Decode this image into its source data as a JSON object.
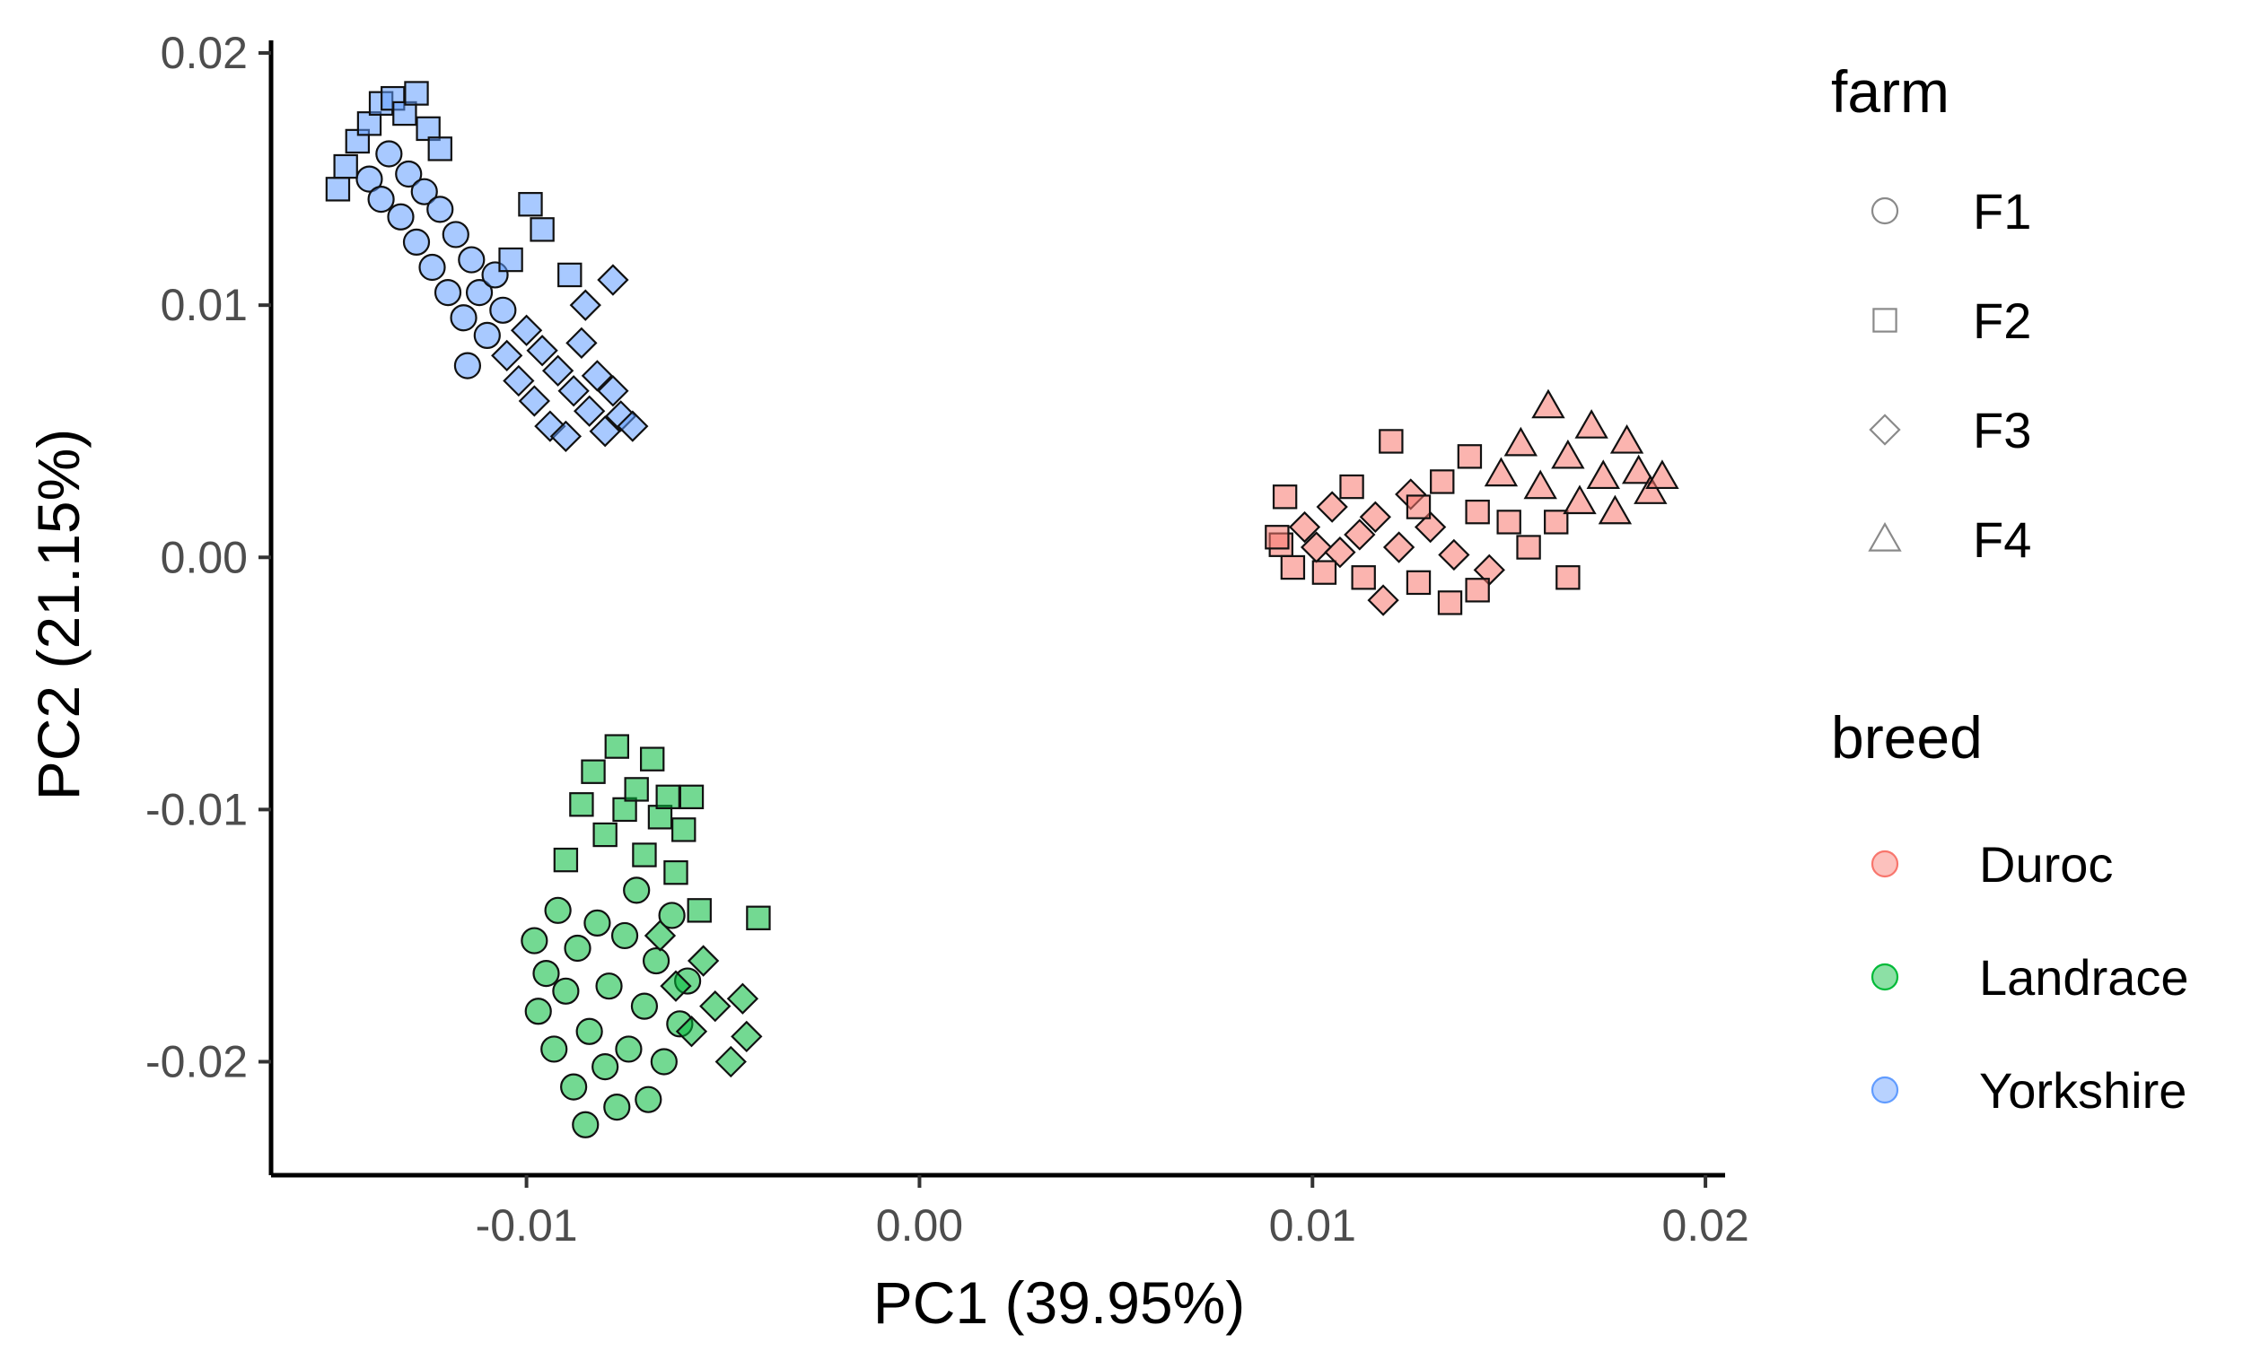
{
  "chart_data": {
    "type": "scatter",
    "title": "",
    "xlabel": "PC1 (39.95%)",
    "ylabel": "PC2 (21.15%)",
    "xlim": [
      -0.0165,
      0.0205
    ],
    "ylim": [
      -0.0245,
      0.0205
    ],
    "x_ticks": [
      -0.01,
      0.0,
      0.01,
      0.02
    ],
    "x_tick_labels": [
      "-0.01",
      "0.00",
      "0.01",
      "0.02"
    ],
    "y_ticks": [
      -0.02,
      -0.01,
      0.0,
      0.01,
      0.02
    ],
    "y_tick_labels": [
      "-0.02",
      "-0.01",
      "0.00",
      "0.01",
      "0.02"
    ],
    "grid": false,
    "legend_position": "right",
    "legends": [
      {
        "title": "farm",
        "entries": [
          {
            "label": "F1",
            "shape": "circle"
          },
          {
            "label": "F2",
            "shape": "square"
          },
          {
            "label": "F3",
            "shape": "diamond"
          },
          {
            "label": "F4",
            "shape": "triangle"
          }
        ]
      },
      {
        "title": "breed",
        "entries": [
          {
            "label": "Duroc",
            "color": "#F8766D"
          },
          {
            "label": "Landrace",
            "color": "#00BA38"
          },
          {
            "label": "Yorkshire",
            "color": "#619CFF"
          }
        ]
      }
    ],
    "series": [
      {
        "name": "Duroc",
        "color": "#F8766D",
        "points": [
          {
            "x": 0.0092,
            "y": 0.0005,
            "shape": "square"
          },
          {
            "x": 0.0091,
            "y": 0.0008,
            "shape": "square"
          },
          {
            "x": 0.0093,
            "y": 0.0024,
            "shape": "square"
          },
          {
            "x": 0.0095,
            "y": -0.0004,
            "shape": "square"
          },
          {
            "x": 0.0098,
            "y": 0.0012,
            "shape": "diamond"
          },
          {
            "x": 0.0101,
            "y": 0.0004,
            "shape": "diamond"
          },
          {
            "x": 0.0103,
            "y": -0.0006,
            "shape": "square"
          },
          {
            "x": 0.0105,
            "y": 0.002,
            "shape": "diamond"
          },
          {
            "x": 0.0107,
            "y": 0.0002,
            "shape": "diamond"
          },
          {
            "x": 0.011,
            "y": 0.0028,
            "shape": "square"
          },
          {
            "x": 0.0112,
            "y": 0.0009,
            "shape": "diamond"
          },
          {
            "x": 0.0113,
            "y": -0.0008,
            "shape": "square"
          },
          {
            "x": 0.0116,
            "y": 0.0016,
            "shape": "diamond"
          },
          {
            "x": 0.0118,
            "y": -0.0017,
            "shape": "diamond"
          },
          {
            "x": 0.012,
            "y": 0.0046,
            "shape": "square"
          },
          {
            "x": 0.0122,
            "y": 0.0004,
            "shape": "diamond"
          },
          {
            "x": 0.0125,
            "y": 0.0025,
            "shape": "diamond"
          },
          {
            "x": 0.0127,
            "y": -0.001,
            "shape": "square"
          },
          {
            "x": 0.013,
            "y": 0.0012,
            "shape": "diamond"
          },
          {
            "x": 0.0133,
            "y": 0.003,
            "shape": "square"
          },
          {
            "x": 0.0136,
            "y": 0.0001,
            "shape": "diamond"
          },
          {
            "x": 0.014,
            "y": 0.004,
            "shape": "square"
          },
          {
            "x": 0.0142,
            "y": 0.0018,
            "shape": "square"
          },
          {
            "x": 0.0145,
            "y": -0.0005,
            "shape": "diamond"
          },
          {
            "x": 0.0148,
            "y": 0.0033,
            "shape": "triangle"
          },
          {
            "x": 0.015,
            "y": 0.0014,
            "shape": "square"
          },
          {
            "x": 0.0153,
            "y": 0.0045,
            "shape": "triangle"
          },
          {
            "x": 0.0155,
            "y": 0.0004,
            "shape": "square"
          },
          {
            "x": 0.0158,
            "y": 0.0028,
            "shape": "triangle"
          },
          {
            "x": 0.016,
            "y": 0.006,
            "shape": "triangle"
          },
          {
            "x": 0.0162,
            "y": 0.0014,
            "shape": "square"
          },
          {
            "x": 0.0165,
            "y": 0.004,
            "shape": "triangle"
          },
          {
            "x": 0.0168,
            "y": 0.0022,
            "shape": "triangle"
          },
          {
            "x": 0.0171,
            "y": 0.0052,
            "shape": "triangle"
          },
          {
            "x": 0.0174,
            "y": 0.0032,
            "shape": "triangle"
          },
          {
            "x": 0.0177,
            "y": 0.0018,
            "shape": "triangle"
          },
          {
            "x": 0.018,
            "y": 0.0046,
            "shape": "triangle"
          },
          {
            "x": 0.0183,
            "y": 0.0034,
            "shape": "triangle"
          },
          {
            "x": 0.0186,
            "y": 0.0026,
            "shape": "triangle"
          },
          {
            "x": 0.0189,
            "y": 0.0032,
            "shape": "triangle"
          },
          {
            "x": 0.0127,
            "y": 0.002,
            "shape": "square"
          },
          {
            "x": 0.0165,
            "y": -0.0008,
            "shape": "square"
          },
          {
            "x": 0.0142,
            "y": -0.0013,
            "shape": "square"
          },
          {
            "x": 0.0135,
            "y": -0.0018,
            "shape": "square"
          }
        ]
      },
      {
        "name": "Landrace",
        "color": "#00BA38",
        "points": [
          {
            "x": -0.0098,
            "y": -0.0152,
            "shape": "circle"
          },
          {
            "x": -0.0097,
            "y": -0.018,
            "shape": "circle"
          },
          {
            "x": -0.0095,
            "y": -0.0165,
            "shape": "circle"
          },
          {
            "x": -0.0093,
            "y": -0.0195,
            "shape": "circle"
          },
          {
            "x": -0.0092,
            "y": -0.014,
            "shape": "circle"
          },
          {
            "x": -0.009,
            "y": -0.0172,
            "shape": "circle"
          },
          {
            "x": -0.0088,
            "y": -0.021,
            "shape": "circle"
          },
          {
            "x": -0.0087,
            "y": -0.0155,
            "shape": "circle"
          },
          {
            "x": -0.0085,
            "y": -0.0225,
            "shape": "circle"
          },
          {
            "x": -0.0084,
            "y": -0.0188,
            "shape": "circle"
          },
          {
            "x": -0.0082,
            "y": -0.0145,
            "shape": "circle"
          },
          {
            "x": -0.008,
            "y": -0.0202,
            "shape": "circle"
          },
          {
            "x": -0.0079,
            "y": -0.017,
            "shape": "circle"
          },
          {
            "x": -0.0077,
            "y": -0.0218,
            "shape": "circle"
          },
          {
            "x": -0.0075,
            "y": -0.015,
            "shape": "circle"
          },
          {
            "x": -0.0074,
            "y": -0.0195,
            "shape": "circle"
          },
          {
            "x": -0.0072,
            "y": -0.0132,
            "shape": "circle"
          },
          {
            "x": -0.007,
            "y": -0.0178,
            "shape": "circle"
          },
          {
            "x": -0.0069,
            "y": -0.0215,
            "shape": "circle"
          },
          {
            "x": -0.0067,
            "y": -0.016,
            "shape": "circle"
          },
          {
            "x": -0.0065,
            "y": -0.02,
            "shape": "circle"
          },
          {
            "x": -0.0063,
            "y": -0.0142,
            "shape": "circle"
          },
          {
            "x": -0.0061,
            "y": -0.0185,
            "shape": "circle"
          },
          {
            "x": -0.0059,
            "y": -0.0168,
            "shape": "circle"
          },
          {
            "x": -0.009,
            "y": -0.012,
            "shape": "square"
          },
          {
            "x": -0.0086,
            "y": -0.0098,
            "shape": "square"
          },
          {
            "x": -0.0083,
            "y": -0.0085,
            "shape": "square"
          },
          {
            "x": -0.008,
            "y": -0.011,
            "shape": "square"
          },
          {
            "x": -0.0077,
            "y": -0.0075,
            "shape": "square"
          },
          {
            "x": -0.0075,
            "y": -0.01,
            "shape": "square"
          },
          {
            "x": -0.0072,
            "y": -0.0092,
            "shape": "square"
          },
          {
            "x": -0.007,
            "y": -0.0118,
            "shape": "square"
          },
          {
            "x": -0.0068,
            "y": -0.008,
            "shape": "square"
          },
          {
            "x": -0.0066,
            "y": -0.0103,
            "shape": "square"
          },
          {
            "x": -0.0064,
            "y": -0.0095,
            "shape": "square"
          },
          {
            "x": -0.0062,
            "y": -0.0125,
            "shape": "square"
          },
          {
            "x": -0.006,
            "y": -0.0108,
            "shape": "square"
          },
          {
            "x": -0.0058,
            "y": -0.0095,
            "shape": "square"
          },
          {
            "x": -0.0056,
            "y": -0.014,
            "shape": "square"
          },
          {
            "x": -0.0041,
            "y": -0.0143,
            "shape": "square"
          },
          {
            "x": -0.0066,
            "y": -0.015,
            "shape": "diamond"
          },
          {
            "x": -0.0062,
            "y": -0.017,
            "shape": "diamond"
          },
          {
            "x": -0.0058,
            "y": -0.0188,
            "shape": "diamond"
          },
          {
            "x": -0.0055,
            "y": -0.016,
            "shape": "diamond"
          },
          {
            "x": -0.0052,
            "y": -0.0178,
            "shape": "diamond"
          },
          {
            "x": -0.0048,
            "y": -0.02,
            "shape": "diamond"
          },
          {
            "x": -0.0045,
            "y": -0.0175,
            "shape": "diamond"
          },
          {
            "x": -0.0044,
            "y": -0.019,
            "shape": "diamond"
          }
        ]
      },
      {
        "name": "Yorkshire",
        "color": "#619CFF",
        "points": [
          {
            "x": -0.0148,
            "y": 0.0146,
            "shape": "square"
          },
          {
            "x": -0.0146,
            "y": 0.0155,
            "shape": "square"
          },
          {
            "x": -0.0143,
            "y": 0.0165,
            "shape": "square"
          },
          {
            "x": -0.014,
            "y": 0.0172,
            "shape": "square"
          },
          {
            "x": -0.0137,
            "y": 0.018,
            "shape": "square"
          },
          {
            "x": -0.0134,
            "y": 0.0182,
            "shape": "square"
          },
          {
            "x": -0.0131,
            "y": 0.0176,
            "shape": "square"
          },
          {
            "x": -0.0128,
            "y": 0.0184,
            "shape": "square"
          },
          {
            "x": -0.0125,
            "y": 0.017,
            "shape": "square"
          },
          {
            "x": -0.0122,
            "y": 0.0162,
            "shape": "square"
          },
          {
            "x": -0.014,
            "y": 0.015,
            "shape": "circle"
          },
          {
            "x": -0.0137,
            "y": 0.0142,
            "shape": "circle"
          },
          {
            "x": -0.0135,
            "y": 0.016,
            "shape": "circle"
          },
          {
            "x": -0.0132,
            "y": 0.0135,
            "shape": "circle"
          },
          {
            "x": -0.013,
            "y": 0.0152,
            "shape": "circle"
          },
          {
            "x": -0.0128,
            "y": 0.0125,
            "shape": "circle"
          },
          {
            "x": -0.0126,
            "y": 0.0145,
            "shape": "circle"
          },
          {
            "x": -0.0124,
            "y": 0.0115,
            "shape": "circle"
          },
          {
            "x": -0.0122,
            "y": 0.0138,
            "shape": "circle"
          },
          {
            "x": -0.012,
            "y": 0.0105,
            "shape": "circle"
          },
          {
            "x": -0.0118,
            "y": 0.0128,
            "shape": "circle"
          },
          {
            "x": -0.0116,
            "y": 0.0095,
            "shape": "circle"
          },
          {
            "x": -0.0114,
            "y": 0.0118,
            "shape": "circle"
          },
          {
            "x": -0.0112,
            "y": 0.0105,
            "shape": "circle"
          },
          {
            "x": -0.011,
            "y": 0.0088,
            "shape": "circle"
          },
          {
            "x": -0.0108,
            "y": 0.0112,
            "shape": "circle"
          },
          {
            "x": -0.0115,
            "y": 0.0076,
            "shape": "circle"
          },
          {
            "x": -0.0106,
            "y": 0.0098,
            "shape": "circle"
          },
          {
            "x": -0.0105,
            "y": 0.008,
            "shape": "diamond"
          },
          {
            "x": -0.0102,
            "y": 0.007,
            "shape": "diamond"
          },
          {
            "x": -0.01,
            "y": 0.009,
            "shape": "diamond"
          },
          {
            "x": -0.0098,
            "y": 0.0062,
            "shape": "diamond"
          },
          {
            "x": -0.0096,
            "y": 0.0082,
            "shape": "diamond"
          },
          {
            "x": -0.0094,
            "y": 0.0052,
            "shape": "diamond"
          },
          {
            "x": -0.0092,
            "y": 0.0074,
            "shape": "diamond"
          },
          {
            "x": -0.009,
            "y": 0.0048,
            "shape": "diamond"
          },
          {
            "x": -0.0088,
            "y": 0.0066,
            "shape": "diamond"
          },
          {
            "x": -0.0086,
            "y": 0.0085,
            "shape": "diamond"
          },
          {
            "x": -0.0084,
            "y": 0.0058,
            "shape": "diamond"
          },
          {
            "x": -0.0082,
            "y": 0.0072,
            "shape": "diamond"
          },
          {
            "x": -0.008,
            "y": 0.005,
            "shape": "diamond"
          },
          {
            "x": -0.0078,
            "y": 0.0066,
            "shape": "diamond"
          },
          {
            "x": -0.0076,
            "y": 0.0056,
            "shape": "diamond"
          },
          {
            "x": -0.0073,
            "y": 0.0052,
            "shape": "diamond"
          },
          {
            "x": -0.0078,
            "y": 0.011,
            "shape": "diamond"
          },
          {
            "x": -0.0085,
            "y": 0.01,
            "shape": "diamond"
          },
          {
            "x": -0.0099,
            "y": 0.014,
            "shape": "square"
          },
          {
            "x": -0.0096,
            "y": 0.013,
            "shape": "square"
          },
          {
            "x": -0.0104,
            "y": 0.0118,
            "shape": "square"
          },
          {
            "x": -0.0089,
            "y": 0.0112,
            "shape": "square"
          }
        ]
      }
    ]
  }
}
